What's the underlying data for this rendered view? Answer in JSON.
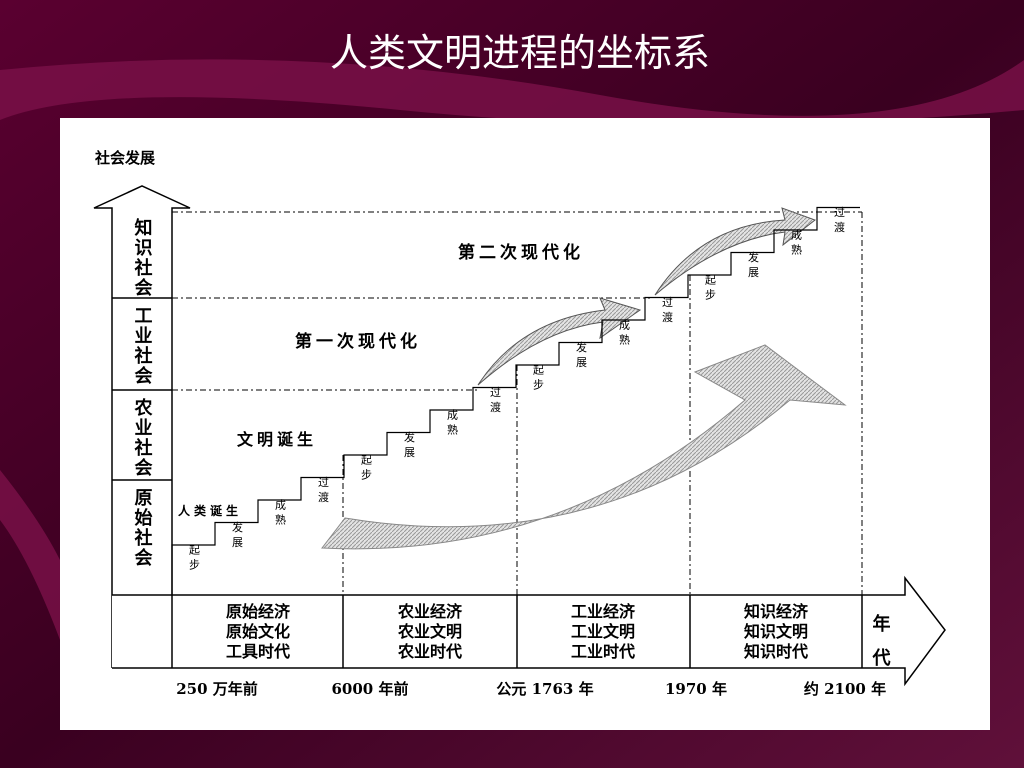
{
  "title": "人类文明进程的坐标系",
  "y_axis_label": "社会发展",
  "x_axis_label": "年代",
  "societies": [
    "原始社会",
    "农业社会",
    "工业社会",
    "知识社会"
  ],
  "eras": [
    [
      "原始经济",
      "原始文化",
      "工具时代"
    ],
    [
      "农业经济",
      "农业文明",
      "农业时代"
    ],
    [
      "工业经济",
      "工业文明",
      "工业时代"
    ],
    [
      "知识经济",
      "知识文明",
      "知识时代"
    ]
  ],
  "years": [
    "250 万年前",
    "6000 年前",
    "公元 1763 年",
    "1970 年",
    "约 2100 年"
  ],
  "step_labels": [
    "起步",
    "发展",
    "成熟",
    "过渡"
  ],
  "milestones": [
    "人类诞生",
    "文明诞生",
    "第一次现代化",
    "第二次现代化"
  ]
}
